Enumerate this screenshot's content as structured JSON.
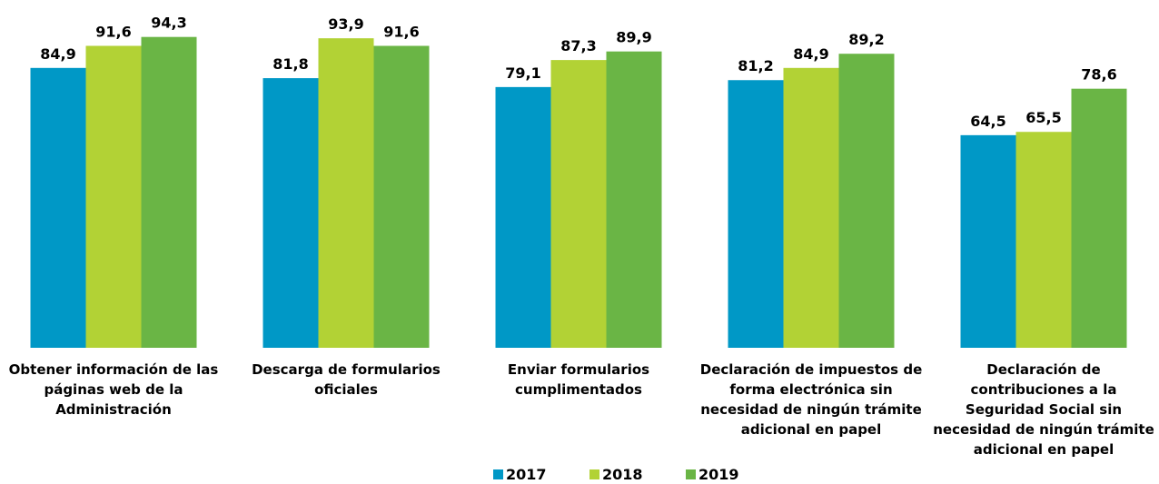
{
  "chart_data": {
    "type": "bar",
    "categories": [
      "Obtener información de las páginas web de la Administración",
      "Descarga de formularios oficiales",
      "Enviar formularios cumplimentados",
      "Declaración de impuestos de forma electrónica sin necesidad de ningún trámite adicional en papel",
      "Declaración de contribuciones a la Seguridad Social sin necesidad de ningún trámite adicional en papel"
    ],
    "series": [
      {
        "name": "2017",
        "color": "#0098c6",
        "values": [
          84.9,
          81.8,
          79.1,
          81.2,
          64.5
        ],
        "value_labels": [
          "84,9",
          "81,8",
          "79,1",
          "81,2",
          "64,5"
        ]
      },
      {
        "name": "2018",
        "color": "#b2d235",
        "values": [
          91.6,
          93.9,
          87.3,
          84.9,
          65.5
        ],
        "value_labels": [
          "91,6",
          "93,9",
          "87,3",
          "84,9",
          "65,5"
        ]
      },
      {
        "name": "2019",
        "color": "#6ab545",
        "values": [
          94.3,
          91.6,
          89.9,
          89.2,
          78.6
        ],
        "value_labels": [
          "94,3",
          "91,6",
          "89,9",
          "89,2",
          "78,6"
        ]
      }
    ],
    "ylim": [
      0,
      100
    ],
    "legend": "bottom"
  }
}
